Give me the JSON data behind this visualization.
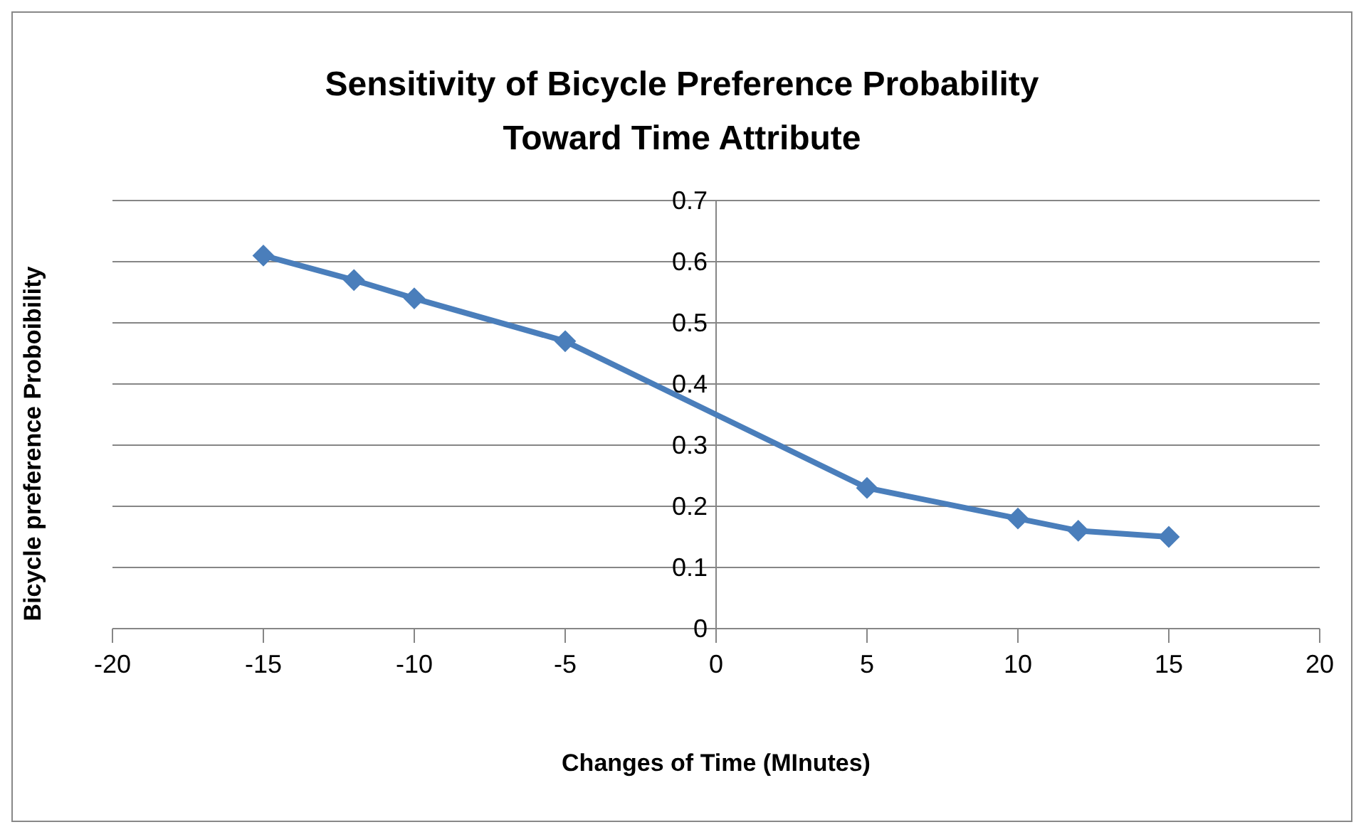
{
  "chart_data": {
    "type": "line",
    "title": "Sensitivity of Bicycle Preference Probability\nToward Time Attribute",
    "xlabel": "Changes of Time (MInutes)",
    "ylabel": "Bicycle  preference Proboibility",
    "x": [
      -15,
      -12,
      -10,
      -5,
      5,
      10,
      12,
      15
    ],
    "series": [
      {
        "color": "#4a7ebb",
        "values": [
          0.61,
          0.57,
          0.54,
          0.47,
          0.23,
          0.18,
          0.16,
          0.15
        ]
      }
    ],
    "xlim": [
      -20,
      20
    ],
    "xticks": [
      -20,
      -15,
      -10,
      -5,
      0,
      5,
      10,
      15,
      20
    ],
    "ylim": [
      0,
      0.7
    ],
    "yticks": [
      0,
      0.1,
      0.2,
      0.3,
      0.4,
      0.5,
      0.6,
      0.7
    ],
    "grid": "y",
    "marker": "diamond",
    "line_style": "solid",
    "legend": false
  }
}
